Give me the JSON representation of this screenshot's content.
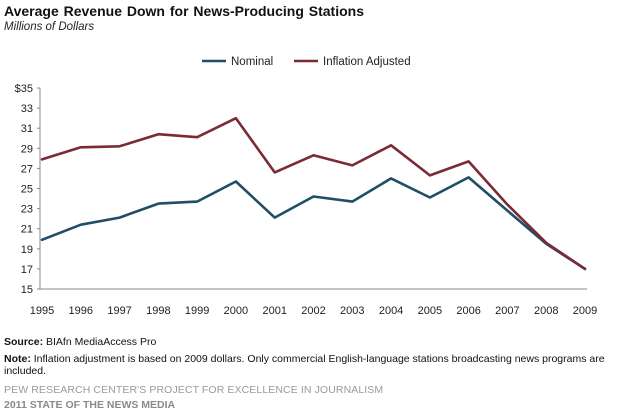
{
  "chart_data": {
    "type": "line",
    "title": "Average Revenue  Down for News-Producing  Stations",
    "subtitle": "Millions of Dollars",
    "x": [
      "1995",
      "1996",
      "1997",
      "1998",
      "1999",
      "2000",
      "2001",
      "2002",
      "2003",
      "2004",
      "2005",
      "2006",
      "2007",
      "2008",
      "2009"
    ],
    "y_ticks": [
      "$35",
      "33",
      "31",
      "29",
      "27",
      "25",
      "23",
      "21",
      "19",
      "17",
      "15"
    ],
    "ylim": [
      15,
      35
    ],
    "grid": false,
    "legend_position": "top-center",
    "series": [
      {
        "name": "Nominal",
        "color": "#1f4e66",
        "values": [
          19.9,
          21.4,
          22.1,
          23.5,
          23.7,
          25.7,
          22.1,
          24.2,
          23.7,
          26.0,
          24.1,
          26.1,
          22.8,
          19.5,
          17.0
        ]
      },
      {
        "name": "Inflation Adjusted",
        "color": "#7a2b35",
        "values": [
          27.9,
          29.1,
          29.2,
          30.4,
          30.1,
          32.0,
          26.6,
          28.3,
          27.3,
          29.3,
          26.3,
          27.7,
          23.4,
          19.6,
          17.0
        ]
      }
    ]
  },
  "source": {
    "label": "Source:",
    "text": " BIAfn MediaAccess Pro"
  },
  "note": {
    "label": "Note:",
    "text": " Inflation adjustment is based on 2009 dollars. Only commercial English-language stations broadcasting news programs are included."
  },
  "footer": {
    "line1": "PEW RESEARCH CENTER'S PROJECT FOR EXCELLENCE IN JOURNALISM",
    "line2": "2011 STATE OF THE NEWS MEDIA"
  }
}
